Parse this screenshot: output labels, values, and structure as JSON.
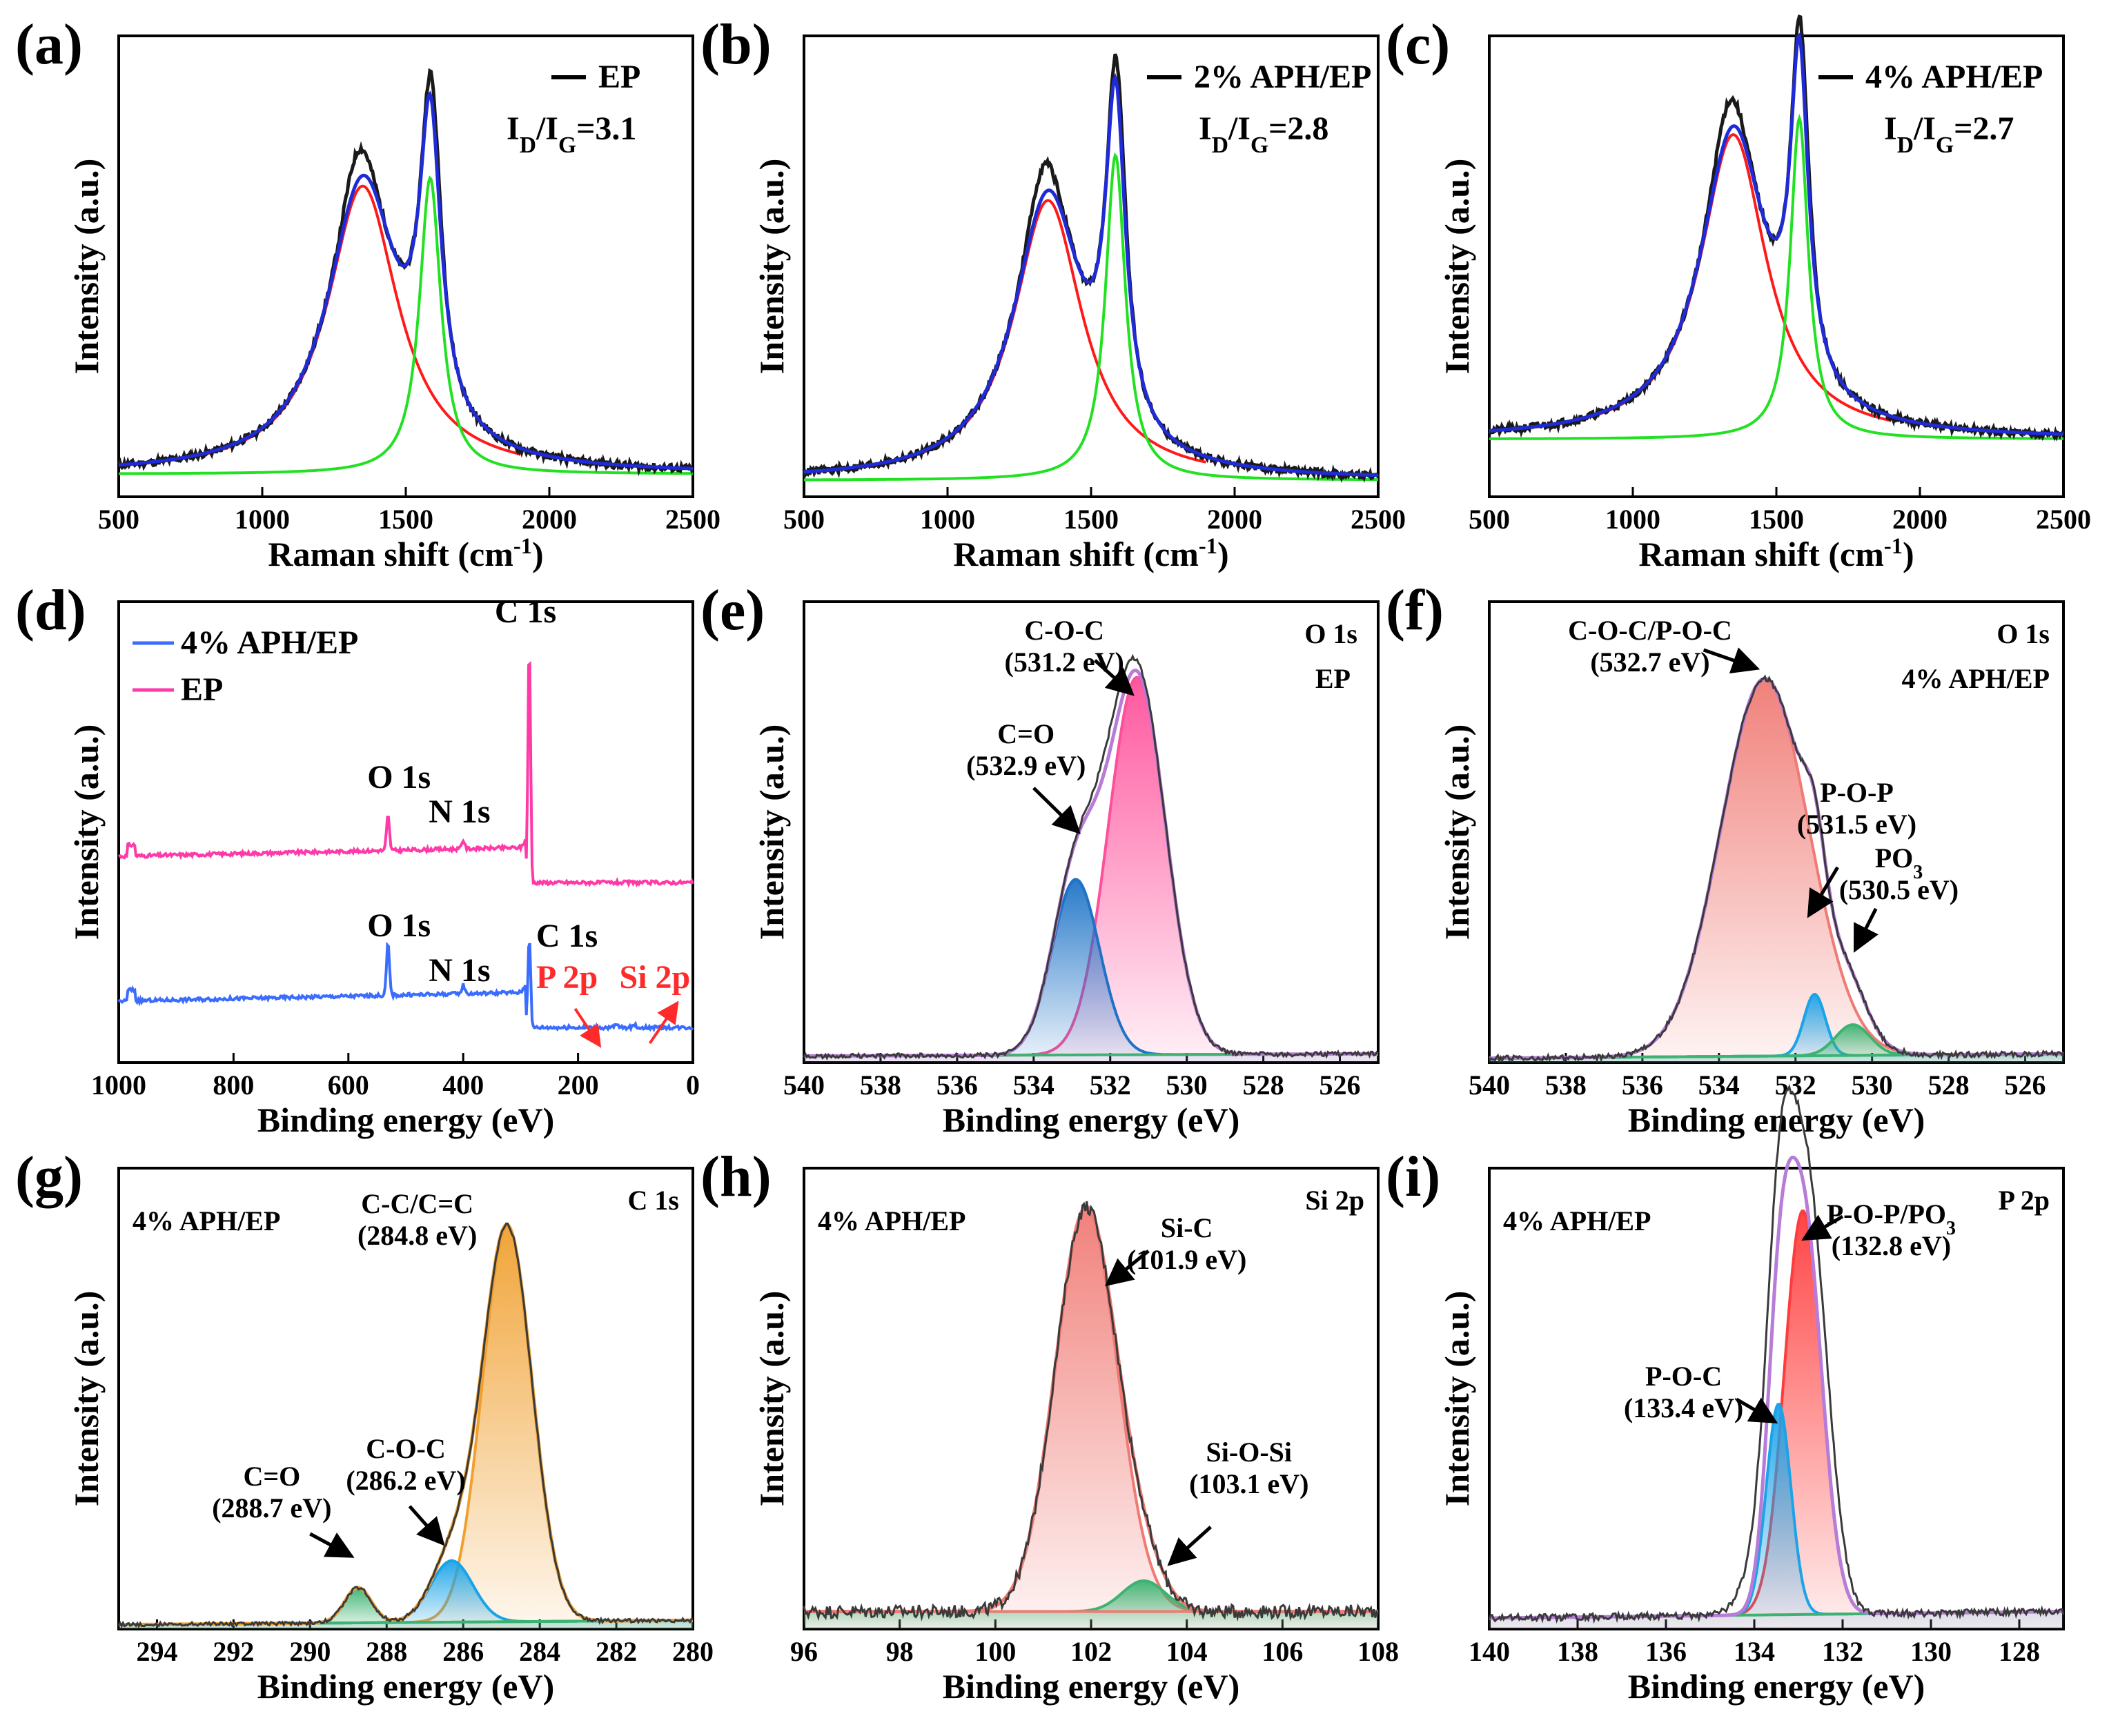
{
  "figure": {
    "panels": [
      "a",
      "b",
      "c",
      "d",
      "e",
      "f",
      "g",
      "h",
      "i"
    ]
  },
  "colors": {
    "raw": "#1a1a1a",
    "fit": "#1f2bd6",
    "d_band": "#ff1a1a",
    "g_band": "#22e022",
    "survey_ep": "#ff3aa8",
    "survey_aph": "#3a6cff",
    "pink": "#ff4f9a",
    "blue": "#1e73c7",
    "salmon": "#f07a74",
    "green": "#3cb371",
    "orange": "#f0a030",
    "violet": "#b77bd8",
    "cyan": "#1aa3e8",
    "red_fill": "#ff3b3b",
    "red_text": "#ff2a2a"
  },
  "chart_data": [
    {
      "id": "a",
      "type": "line",
      "panel_label": "(a)",
      "xlabel": "Raman shift (cm",
      "xlabel_sup": "-1",
      "xlabel_end": ")",
      "ylabel": "Intensity (a.u.)",
      "xlim": [
        500,
        2500
      ],
      "ylim": [
        0,
        1.12
      ],
      "xticks": [
        "500",
        "1000",
        "1500",
        "2000",
        "2500"
      ],
      "legend": "EP",
      "ratio_label": "I",
      "ratio_sub1": "D",
      "ratio_mid": "/I",
      "ratio_sub2": "G",
      "ratio_value": "=3.1",
      "baseline": 0.055,
      "D": {
        "center": 1350,
        "height": 0.7,
        "width": 150
      },
      "G": {
        "center": 1585,
        "height": 0.72,
        "width": 45
      }
    },
    {
      "id": "b",
      "type": "line",
      "panel_label": "(b)",
      "xlabel": "Raman shift (cm",
      "xlabel_sup": "-1",
      "xlabel_end": ")",
      "ylabel": "Intensity (a.u.)",
      "xlim": [
        500,
        2500
      ],
      "ylim": [
        0,
        1.12
      ],
      "xticks": [
        "500",
        "1000",
        "1500",
        "2000",
        "2500"
      ],
      "legend": "2% APH/EP",
      "ratio_label": "I",
      "ratio_sub1": "D",
      "ratio_mid": "/I",
      "ratio_sub2": "G",
      "ratio_value": "=2.8",
      "baseline": 0.04,
      "D": {
        "center": 1350,
        "height": 0.68,
        "width": 145
      },
      "G": {
        "center": 1585,
        "height": 0.79,
        "width": 42
      }
    },
    {
      "id": "c",
      "type": "line",
      "panel_label": "(c)",
      "xlabel": "Raman shift (cm",
      "xlabel_sup": "-1",
      "xlabel_end": ")",
      "ylabel": "Intensity (a.u.)",
      "xlim": [
        500,
        2500
      ],
      "ylim": [
        0,
        1.12
      ],
      "xticks": [
        "500",
        "1000",
        "1500",
        "2000",
        "2500"
      ],
      "legend": "4% APH/EP",
      "ratio_label": "I",
      "ratio_sub1": "D",
      "ratio_mid": "/I",
      "ratio_sub2": "G",
      "ratio_value": "=2.7",
      "baseline": 0.14,
      "D": {
        "center": 1350,
        "height": 0.74,
        "width": 140
      },
      "G": {
        "center": 1580,
        "height": 0.78,
        "width": 38
      }
    },
    {
      "id": "d",
      "type": "line",
      "panel_label": "(d)",
      "xlabel": "Binding energy (eV)",
      "ylabel": "Intensity (a.u.)",
      "xlim": [
        1000,
        0
      ],
      "ylim": [
        0,
        1.05
      ],
      "reverse": true,
      "xticks": [
        "1000",
        "800",
        "600",
        "400",
        "200",
        "0"
      ],
      "legend": [
        "4% APH/EP",
        "EP"
      ],
      "peak_labels": {
        "o1s": "O 1s",
        "n1s": "N 1s",
        "c1s": "C 1s",
        "p2p": "P 2p",
        "si2p": "Si 2p"
      },
      "series": [
        {
          "name": "EP",
          "offset": 0.43,
          "O1s": 531,
          "N1s": 400,
          "C1s": 285
        },
        {
          "name": "4% APH/EP",
          "offset": 0.1,
          "O1s": 531,
          "N1s": 400,
          "C1s": 285
        }
      ]
    },
    {
      "id": "e",
      "type": "area",
      "panel_label": "(e)",
      "xlabel": "Binding energy (eV)",
      "ylabel": "Intensity (a.u.)",
      "xlim": [
        540,
        525
      ],
      "ylim": [
        0,
        1.05
      ],
      "reverse": true,
      "xticks": [
        "540",
        "538",
        "536",
        "534",
        "532",
        "530",
        "528",
        "526"
      ],
      "title": "O 1s",
      "subtitle": "EP",
      "peaks": [
        {
          "name": "C-O-C",
          "energy_label": "(531.2 eV)",
          "center": 531.3,
          "height": 0.86,
          "width": 0.75
        },
        {
          "name": "C=O",
          "energy_label": "(532.9 eV)",
          "center": 532.9,
          "height": 0.4,
          "width": 0.62
        }
      ]
    },
    {
      "id": "f",
      "type": "area",
      "panel_label": "(f)",
      "xlabel": "Binding energy (eV)",
      "ylabel": "Intensity (a.u.)",
      "xlim": [
        540,
        525
      ],
      "ylim": [
        0,
        1.05
      ],
      "reverse": true,
      "xticks": [
        "540",
        "538",
        "536",
        "534",
        "532",
        "530",
        "528",
        "526"
      ],
      "title": "O 1s",
      "subtitle": "4% APH/EP",
      "peaks": [
        {
          "name": "C-O-C/P-O-C",
          "energy_label": "(532.7 eV)",
          "center": 532.8,
          "height": 0.86,
          "width": 1.15
        },
        {
          "name": "P-O-P",
          "energy_label": "(531.5 eV)",
          "center": 531.5,
          "height": 0.14,
          "width": 0.28
        },
        {
          "name": "PO",
          "name_sub": "3",
          "energy_label": "(530.5 eV)",
          "center": 530.5,
          "height": 0.07,
          "width": 0.45
        }
      ]
    },
    {
      "id": "g",
      "type": "area",
      "panel_label": "(g)",
      "xlabel": "Binding energy (eV)",
      "ylabel": "Intensity (a.u.)",
      "xlim": [
        295,
        280
      ],
      "ylim": [
        0,
        1.05
      ],
      "reverse": true,
      "xticks": [
        "294",
        "292",
        "290",
        "288",
        "286",
        "284",
        "282",
        "280"
      ],
      "title": "C 1s",
      "subtitle": "4% APH/EP",
      "peaks": [
        {
          "name": "C-C/C=C",
          "energy_label": "(284.8 eV)",
          "center": 284.85,
          "height": 0.9,
          "width": 0.65
        },
        {
          "name": "C-O-C",
          "energy_label": "(286.2 eV)",
          "center": 286.3,
          "height": 0.14,
          "width": 0.55
        },
        {
          "name": "C=O",
          "energy_label": "(288.7 eV)",
          "center": 288.75,
          "height": 0.08,
          "width": 0.35
        }
      ]
    },
    {
      "id": "h",
      "type": "area",
      "panel_label": "(h)",
      "xlabel": "Binding energy (eV)",
      "ylabel": "Intensity (a.u.)",
      "xlim": [
        96,
        108
      ],
      "ylim": [
        0,
        1.05
      ],
      "xticks": [
        "96",
        "98",
        "100",
        "102",
        "104",
        "106",
        "108"
      ],
      "title": "Si 2p",
      "subtitle": "4% APH/EP",
      "peaks": [
        {
          "name": "Si-C",
          "energy_label": "(101.9 eV)",
          "center": 101.9,
          "height": 0.92,
          "width": 0.65
        },
        {
          "name": "Si-O-Si",
          "energy_label": "(103.1 eV)",
          "center": 103.1,
          "height": 0.07,
          "width": 0.45
        }
      ]
    },
    {
      "id": "i",
      "type": "area",
      "panel_label": "(i)",
      "xlabel": "Binding energy (eV)",
      "ylabel": "Intensity (a.u.)",
      "xlim": [
        140,
        127
      ],
      "ylim": [
        0,
        1.05
      ],
      "reverse": true,
      "xticks": [
        "140",
        "138",
        "136",
        "134",
        "132",
        "130",
        "128"
      ],
      "title": "P 2p",
      "subtitle": "4% APH/EP",
      "peaks": [
        {
          "name": "P-O-P/PO",
          "name_sub": "3",
          "energy_label": "(132.8 eV)",
          "center": 132.9,
          "height": 0.92,
          "width": 0.42
        },
        {
          "name": "P-O-C",
          "energy_label": "(133.4 eV)",
          "center": 133.45,
          "height": 0.48,
          "width": 0.28
        }
      ]
    }
  ]
}
